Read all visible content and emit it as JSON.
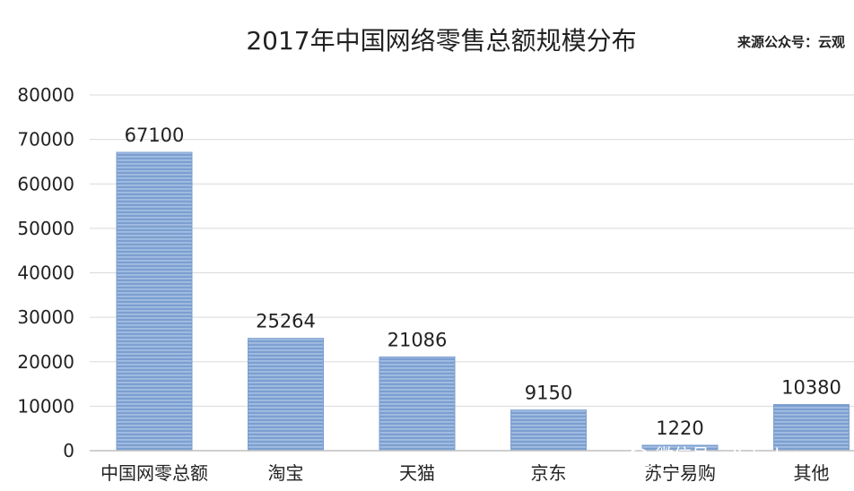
{
  "chart_data": {
    "type": "bar",
    "title": "2017年中国网络零售总额规模分布",
    "source_note": "来源公众号：云观",
    "categories": [
      "中国网零总额",
      "淘宝",
      "天猫",
      "京东",
      "苏宁易购",
      "其他"
    ],
    "values": [
      67100,
      25264,
      21086,
      9150,
      1220,
      10380
    ],
    "data_labels": [
      "67100",
      "25264",
      "21086",
      "9150",
      "1220",
      "10380"
    ],
    "yticks": [
      "0",
      "10000",
      "20000",
      "30000",
      "40000",
      "50000",
      "60000",
      "70000",
      "80000"
    ],
    "ylim": [
      0,
      80000
    ],
    "ystep": 10000,
    "xlabel": "",
    "ylabel": "",
    "grid": true,
    "legend": "none",
    "bar_color": "#7b9fd0",
    "bar_stripe_color": "#aec5e6"
  },
  "watermark": {
    "icon": "wechat-icon",
    "text": "微信号: allzhidao"
  }
}
